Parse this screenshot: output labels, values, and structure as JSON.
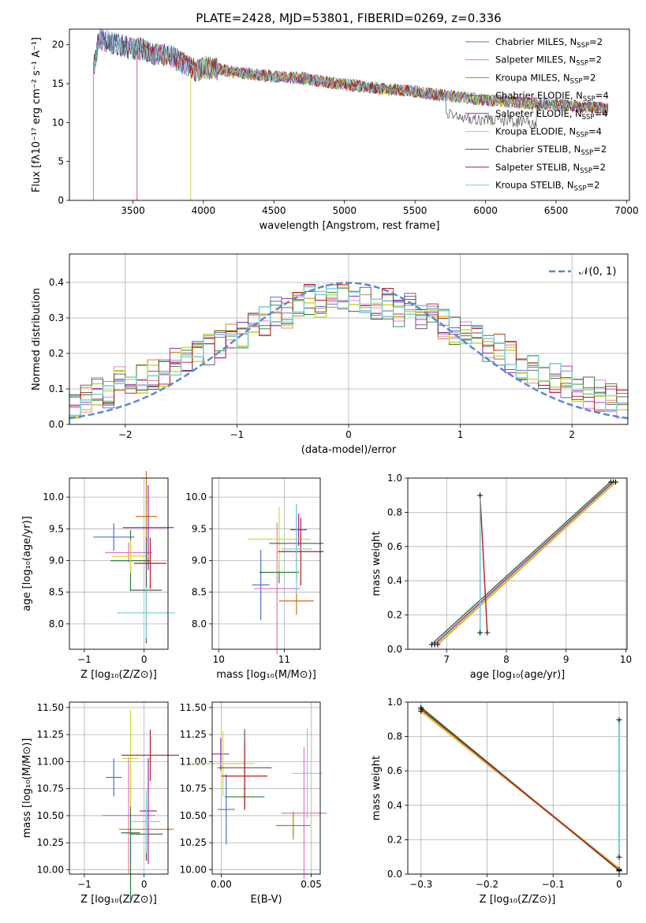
{
  "figure_title": "PLATE=2428, MJD=53801, FIBERID=0269, z=0.336",
  "legend_entries": [
    {
      "label": "Chabrier MILES, N",
      "sub": "SSP",
      "tail": "=2",
      "color": "#4c6fd0"
    },
    {
      "label": "Salpeter MILES, N",
      "sub": "SSP",
      "tail": "=2",
      "color": "#e377c2"
    },
    {
      "label": "Kroupa MILES, N",
      "sub": "SSP",
      "tail": "=2",
      "color": "#c07a10"
    },
    {
      "label": "Chabrier ELODIE, N",
      "sub": "SSP",
      "tail": "=4",
      "color": "#2e7d32"
    },
    {
      "label": "Salpeter ELODIE, N",
      "sub": "SSP",
      "tail": "=4",
      "color": "#9c27b0"
    },
    {
      "label": "Kroupa ELODIE, N",
      "sub": "SSP",
      "tail": "=4",
      "color": "#cddc39"
    },
    {
      "label": "Chabrier STELIB, N",
      "sub": "SSP",
      "tail": "=2",
      "color": "#555555"
    },
    {
      "label": "Salpeter STELIB, N",
      "sub": "SSP",
      "tail": "=2",
      "color": "#b71c1c"
    },
    {
      "label": "Kroupa STELIB, N",
      "sub": "SSP",
      "tail": "=2",
      "color": "#7fd0d8"
    }
  ],
  "chart_data": [
    {
      "id": "spectrum",
      "type": "line",
      "xlabel": "wavelength [Angstrom, rest frame]",
      "ylabel": "Flux [fλ10⁻¹⁷ erg cm⁻² s⁻¹ A⁻¹]",
      "xlim": [
        3050,
        7020
      ],
      "ylim": [
        0,
        22
      ],
      "xticks": [
        3500,
        4000,
        4500,
        5000,
        5500,
        6000,
        6500,
        7000
      ],
      "yticks": [
        0,
        5,
        10,
        15,
        20
      ],
      "grid": false,
      "legend": "top-right",
      "spectrum_points": [
        [
          3220,
          17
        ],
        [
          3260,
          20.8
        ],
        [
          3300,
          20.5
        ],
        [
          3350,
          20.2
        ],
        [
          3400,
          20.0
        ],
        [
          3450,
          19.7
        ],
        [
          3500,
          19.4
        ],
        [
          3550,
          19.5
        ],
        [
          3600,
          19.2
        ],
        [
          3650,
          18.8
        ],
        [
          3700,
          18.6
        ],
        [
          3750,
          18.7
        ],
        [
          3800,
          18.2
        ],
        [
          3850,
          17.6
        ],
        [
          3900,
          17.3
        ],
        [
          3950,
          16.6
        ],
        [
          4000,
          17.1
        ],
        [
          4100,
          16.9
        ],
        [
          4200,
          16.5
        ],
        [
          4300,
          16.3
        ],
        [
          4400,
          16.1
        ],
        [
          4500,
          15.9
        ],
        [
          4600,
          15.8
        ],
        [
          4700,
          15.7
        ],
        [
          4800,
          15.4
        ],
        [
          4900,
          15.1
        ],
        [
          5000,
          14.9
        ],
        [
          5100,
          14.7
        ],
        [
          5200,
          14.5
        ],
        [
          5300,
          14.3
        ],
        [
          5400,
          14.2
        ],
        [
          5500,
          14.0
        ],
        [
          5600,
          13.7
        ],
        [
          5700,
          13.5
        ],
        [
          5800,
          13.3
        ],
        [
          5900,
          13.1
        ],
        [
          6000,
          12.9
        ],
        [
          6100,
          12.8
        ],
        [
          6200,
          12.6
        ],
        [
          6300,
          12.5
        ],
        [
          6400,
          12.4
        ],
        [
          6500,
          12.3
        ],
        [
          6600,
          12.2
        ],
        [
          6700,
          12.0
        ],
        [
          6870,
          11.8
        ]
      ]
    },
    {
      "id": "residuals",
      "type": "line",
      "xlabel": "(data-model)/error",
      "ylabel": "Normed distribution",
      "xlim": [
        -2.5,
        2.5
      ],
      "ylim": [
        0,
        0.48
      ],
      "xticks": [
        -2,
        -1,
        0,
        1,
        2
      ],
      "yticks": [
        0.0,
        0.1,
        0.2,
        0.3,
        0.4
      ],
      "grid": true,
      "legend": "top-right",
      "gaussian_label": "𝒩(0, 1)",
      "gaussian_mu": 0,
      "gaussian_sigma": 1,
      "histogram_values": [
        0.04,
        0.08,
        0.1,
        0.09,
        0.12,
        0.13,
        0.13,
        0.14,
        0.15,
        0.17,
        0.19,
        0.2,
        0.21,
        0.23,
        0.24,
        0.26,
        0.27,
        0.29,
        0.32,
        0.31,
        0.33,
        0.35,
        0.34,
        0.36,
        0.37,
        0.35,
        0.36,
        0.33,
        0.34,
        0.32,
        0.33,
        0.31,
        0.3,
        0.28,
        0.27,
        0.25,
        0.24,
        0.22,
        0.21,
        0.19,
        0.17,
        0.16,
        0.14,
        0.13,
        0.12,
        0.1,
        0.09,
        0.08,
        0.07,
        0.06
      ]
    },
    {
      "id": "age_vs_Z",
      "type": "scatter",
      "xlabel": "Z [log₁₀(Z/Z⊙)]",
      "ylabel": "age  [log₁₀(age/yr)]",
      "xlim": [
        -1.25,
        0.4
      ],
      "ylim": [
        7.6,
        10.3
      ],
      "xticks": [
        -1,
        0
      ],
      "yticks": [
        8.0,
        8.5,
        9.0,
        9.5,
        10.0
      ],
      "grid": true
    },
    {
      "id": "age_vs_mass",
      "type": "scatter",
      "xlabel": "mass [log₁₀(M/M⊙)]",
      "ylabel": "",
      "xlim": [
        9.9,
        11.55
      ],
      "ylim": [
        7.6,
        10.3
      ],
      "xticks": [
        10,
        11
      ],
      "yticks": [
        8.0,
        8.5,
        9.0,
        9.5,
        10.0
      ],
      "grid": true
    },
    {
      "id": "weight_vs_age",
      "type": "line",
      "xlabel": "age  [log₁₀(age/yr)]",
      "ylabel": "mass weight",
      "xlim": [
        6.35,
        10.02
      ],
      "ylim": [
        0,
        1
      ],
      "xticks": [
        7,
        8,
        9,
        10
      ],
      "yticks": [
        0.0,
        0.2,
        0.4,
        0.6,
        0.8,
        1.0
      ],
      "grid": true
    },
    {
      "id": "mass_vs_Z",
      "type": "scatter",
      "xlabel": "Z [log₁₀(Z/Z⊙)]",
      "ylabel": "mass [log₁₀(M/M⊙)]",
      "xlim": [
        -1.25,
        0.4
      ],
      "ylim": [
        9.96,
        11.55
      ],
      "xticks": [
        -1,
        0
      ],
      "yticks": [
        10.0,
        10.25,
        10.5,
        10.75,
        11.0,
        11.25,
        11.5
      ],
      "grid": true
    },
    {
      "id": "mass_vs_EBV",
      "type": "scatter",
      "xlabel": "E(B-V)",
      "ylabel": "",
      "xlim": [
        -0.005,
        0.055
      ],
      "ylim": [
        9.96,
        11.55
      ],
      "xticks": [
        0.0,
        0.05
      ],
      "xticklabels": [
        "0.00",
        "0.05"
      ],
      "yticks": [
        10.0,
        10.25,
        10.5,
        10.75,
        11.0,
        11.25,
        11.5
      ],
      "grid": true
    },
    {
      "id": "weight_vs_Z",
      "type": "line",
      "xlabel": "Z [log₁₀(Z/Z⊙)]",
      "ylabel": "mass weight",
      "xlim": [
        -0.32,
        0.012
      ],
      "ylim": [
        0,
        1
      ],
      "xticks": [
        -0.3,
        -0.2,
        -0.1,
        0.0
      ],
      "yticks": [
        0.0,
        0.2,
        0.4,
        0.6,
        0.8,
        1.0
      ],
      "grid": true
    }
  ]
}
